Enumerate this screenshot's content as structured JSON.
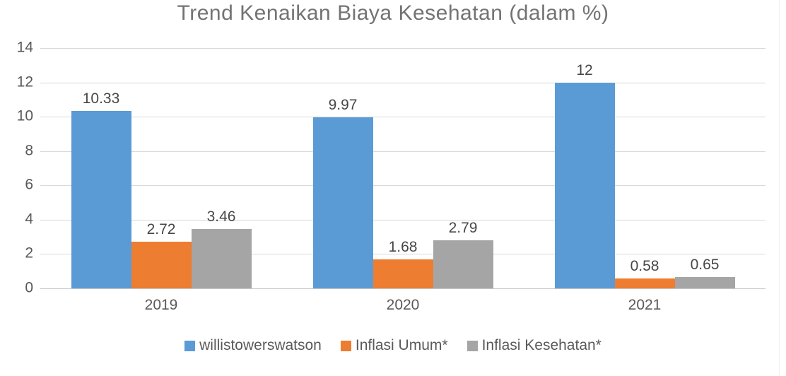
{
  "chart_data": {
    "type": "bar",
    "title": "Trend Kenaikan Biaya Kesehatan (dalam %)",
    "categories": [
      "2019",
      "2020",
      "2021"
    ],
    "series": [
      {
        "name": "willistowerswatson",
        "color": "#5B9BD5",
        "values": [
          10.33,
          9.97,
          12
        ],
        "labels": [
          "10.33",
          "9.97",
          "12"
        ]
      },
      {
        "name": "Inflasi Umum*",
        "color": "#ED7D31",
        "values": [
          2.72,
          1.68,
          0.58
        ],
        "labels": [
          "2.72",
          "1.68",
          "0.58"
        ]
      },
      {
        "name": "Inflasi Kesehatan*",
        "color": "#A5A5A5",
        "values": [
          3.46,
          2.79,
          0.65
        ],
        "labels": [
          "3.46",
          "2.79",
          "0.65"
        ]
      }
    ],
    "ylim": [
      0,
      14
    ],
    "yticks": [
      0,
      2,
      4,
      6,
      8,
      10,
      12,
      14
    ],
    "grid": true,
    "legend_position": "bottom",
    "text_color": "#595959",
    "title_color": "#737373",
    "gridline_color": "#D9D9D9"
  }
}
